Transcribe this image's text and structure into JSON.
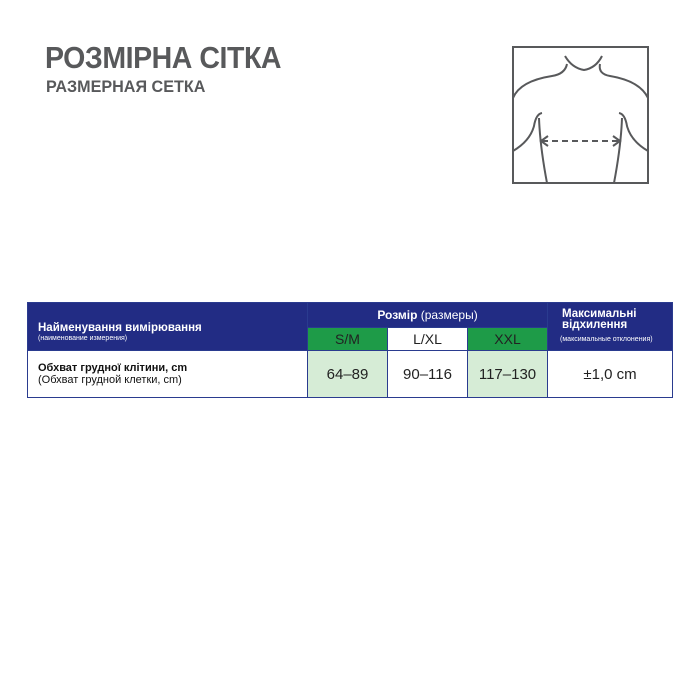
{
  "title": "РОЗМІРНА СІТКА",
  "subtitle": "РАЗМЕРНАЯ СЕТКА",
  "figure": {
    "icon": "chest-measurement-icon"
  },
  "table": {
    "name_header": "Найменування вимірювання",
    "name_header_sub": "(наименование измерения)",
    "size_header": "Розмір",
    "size_header_sub": "(размеры)",
    "max_header_1": "Максимальні",
    "max_header_2": "відхилення",
    "max_header_sub": "(максимальные отклонения)",
    "sizes": [
      "S/M",
      "L/XL",
      "XXL"
    ],
    "row": {
      "name": "Обхват грудної клітини, cm",
      "name_sub": "(Обхват грудной клетки, cm)",
      "values": [
        "64–89",
        "90–116",
        "117–130"
      ],
      "deviation": "±1,0 cm"
    }
  },
  "colors": {
    "header_blue": "#222c84",
    "size_green": "#1e9b48",
    "cell_green": "#d6ecd6",
    "title_gray": "#58595b"
  }
}
